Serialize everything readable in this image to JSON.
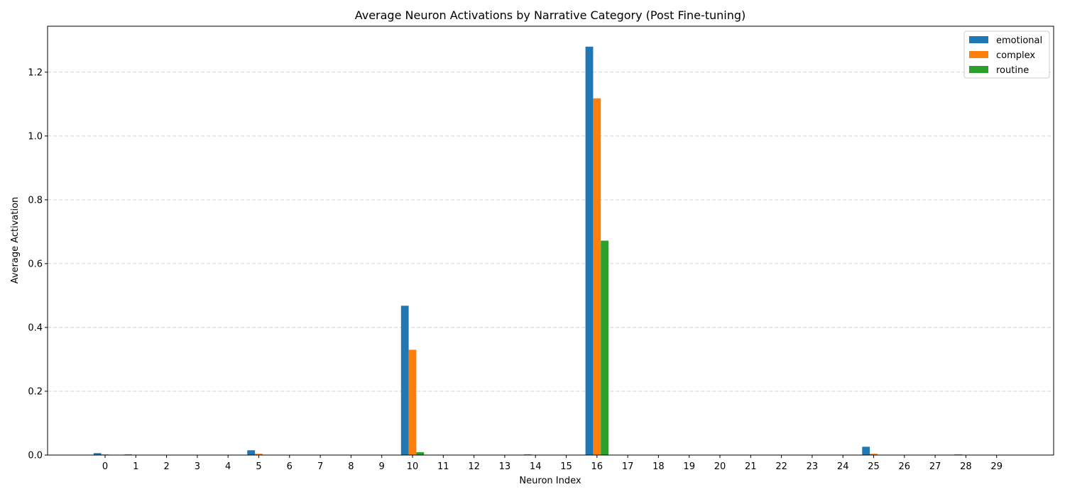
{
  "chart_data": {
    "type": "bar",
    "title": "Average Neuron Activations by Narrative Category (Post Fine-tuning)",
    "xlabel": "Neuron Index",
    "ylabel": "Average Activation",
    "categories": [
      "0",
      "1",
      "2",
      "3",
      "4",
      "5",
      "6",
      "7",
      "8",
      "9",
      "10",
      "11",
      "12",
      "13",
      "14",
      "15",
      "16",
      "17",
      "18",
      "19",
      "20",
      "21",
      "22",
      "23",
      "24",
      "25",
      "26",
      "27",
      "28",
      "29"
    ],
    "series": [
      {
        "name": "emotional",
        "color": "#1f77b4",
        "values": [
          0.006,
          0.002,
          0,
          0,
          0,
          0.015,
          0,
          0,
          0,
          0,
          0.468,
          0,
          0,
          0,
          0.002,
          0,
          1.28,
          0,
          0,
          0,
          0,
          0,
          0,
          0,
          0,
          0.026,
          0,
          0,
          0.002,
          0
        ]
      },
      {
        "name": "complex",
        "color": "#ff7f0e",
        "values": [
          0.002,
          0.001,
          0,
          0,
          0,
          0.004,
          0,
          0,
          0,
          0,
          0.33,
          0,
          0,
          0,
          0.001,
          0,
          1.118,
          0,
          0,
          0,
          0,
          0,
          0,
          0,
          0,
          0.004,
          0,
          0,
          0.001,
          0
        ]
      },
      {
        "name": "routine",
        "color": "#2ca02c",
        "values": [
          0,
          0,
          0,
          0,
          0,
          0,
          0,
          0,
          0,
          0,
          0.009,
          0,
          0,
          0,
          0,
          0,
          0.672,
          0,
          0,
          0,
          0,
          0,
          0,
          0,
          0,
          0,
          0,
          0,
          0,
          0
        ]
      }
    ],
    "ylim": [
      0,
      1.344
    ],
    "yticks": [
      "0.0",
      "0.2",
      "0.4",
      "0.6",
      "0.8",
      "1.0",
      "1.2"
    ],
    "grid": "y-dashed",
    "legend_position": "top-right"
  }
}
